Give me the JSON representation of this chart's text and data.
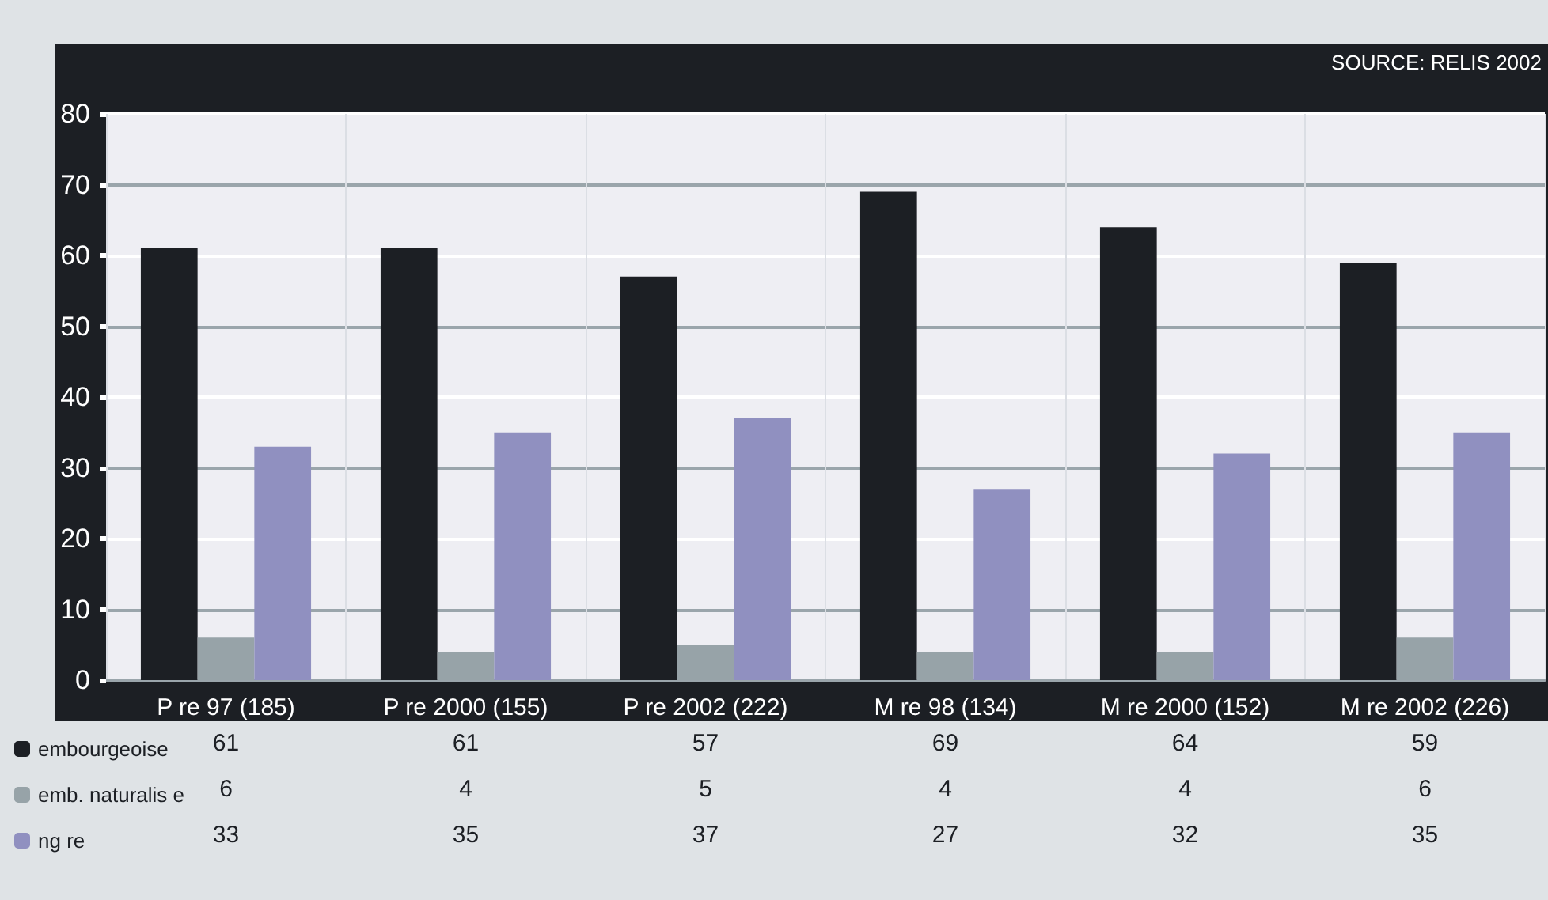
{
  "chart_data": {
    "type": "bar",
    "categories": [
      "P re 97 (185)",
      "P re 2000 (155)",
      "P re 2002 (222)",
      "M re 98 (134)",
      "M re 2000 (152)",
      "M re 2002 (226)"
    ],
    "series": [
      {
        "name": "embourgeoise",
        "color": "#1c1f24",
        "values": [
          61,
          61,
          57,
          69,
          64,
          59
        ]
      },
      {
        "name": "emb. naturalis e",
        "color": "#97a3a8",
        "values": [
          6,
          4,
          5,
          4,
          4,
          6
        ]
      },
      {
        "name": "ng re",
        "color": "#9090c0",
        "values": [
          33,
          35,
          37,
          27,
          32,
          35
        ]
      }
    ],
    "ylim": [
      0,
      80
    ],
    "yticks": [
      0,
      10,
      20,
      30,
      40,
      50,
      60,
      70,
      80
    ],
    "grid": true,
    "legend": "bottom left",
    "data_labels": true,
    "annotations": [
      "SOURCE: RELIS 2002"
    ]
  }
}
